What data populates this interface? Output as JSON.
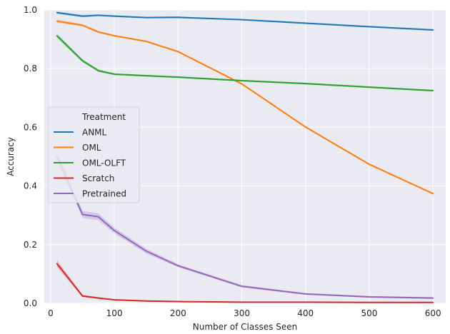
{
  "chart_data": {
    "type": "line",
    "title": "",
    "xlabel": "Number of Classes Seen",
    "ylabel": "Accuracy",
    "xlim": [
      -10,
      620
    ],
    "ylim": [
      0,
      1
    ],
    "xticks": [
      0,
      100,
      200,
      300,
      400,
      500,
      600
    ],
    "yticks": [
      0.0,
      0.2,
      0.4,
      0.6,
      0.8,
      1.0
    ],
    "yticklabels": [
      "0.0",
      "0.2",
      "0.4",
      "0.6",
      "0.8",
      "1.0"
    ],
    "grid": true,
    "legend": {
      "title": "Treatment",
      "placement": "center-left"
    },
    "background_color": "#eaeaf2",
    "series": [
      {
        "name": "ANML",
        "color": "#1f77b4",
        "x": [
          10,
          50,
          75,
          100,
          150,
          200,
          300,
          400,
          500,
          600
        ],
        "y": [
          0.991,
          0.979,
          0.982,
          0.979,
          0.974,
          0.975,
          0.967,
          0.955,
          0.943,
          0.932
        ],
        "band": [
          0.004,
          0.004,
          0.003,
          0.003,
          0.003,
          0.003,
          0.003,
          0.003,
          0.003,
          0.003
        ]
      },
      {
        "name": "OML",
        "color": "#ff7f0e",
        "x": [
          10,
          50,
          75,
          100,
          150,
          200,
          300,
          400,
          500,
          600
        ],
        "y": [
          0.962,
          0.948,
          0.925,
          0.912,
          0.893,
          0.858,
          0.748,
          0.601,
          0.474,
          0.374
        ],
        "band": [
          0.006,
          0.004,
          0.004,
          0.003,
          0.003,
          0.003,
          0.003,
          0.003,
          0.003,
          0.003
        ]
      },
      {
        "name": "OML-OLFT",
        "color": "#2ca02c",
        "x": [
          10,
          50,
          75,
          100,
          150,
          200,
          300,
          400,
          500,
          600
        ],
        "y": [
          0.912,
          0.827,
          0.793,
          0.781,
          0.776,
          0.771,
          0.759,
          0.749,
          0.737,
          0.725
        ],
        "band": [
          0.008,
          0.005,
          0.005,
          0.003,
          0.003,
          0.003,
          0.003,
          0.003,
          0.003,
          0.003
        ]
      },
      {
        "name": "Scratch",
        "color": "#d62728",
        "x": [
          10,
          50,
          75,
          100,
          150,
          200,
          300,
          400,
          500,
          600
        ],
        "y": [
          0.135,
          0.025,
          0.018,
          0.012,
          0.008,
          0.006,
          0.004,
          0.004,
          0.003,
          0.003
        ],
        "band": [
          0.012,
          0.004,
          0.003,
          0.002,
          0.002,
          0.002,
          0.002,
          0.002,
          0.002,
          0.002
        ]
      },
      {
        "name": "Pretrained",
        "color": "#9467bd",
        "x": [
          10,
          50,
          75,
          100,
          150,
          200,
          300,
          400,
          500,
          600
        ],
        "y": [
          0.5,
          0.303,
          0.295,
          0.248,
          0.178,
          0.128,
          0.058,
          0.032,
          0.022,
          0.018
        ],
        "band": [
          0.02,
          0.012,
          0.012,
          0.01,
          0.008,
          0.005,
          0.004,
          0.003,
          0.003,
          0.003
        ]
      }
    ]
  }
}
